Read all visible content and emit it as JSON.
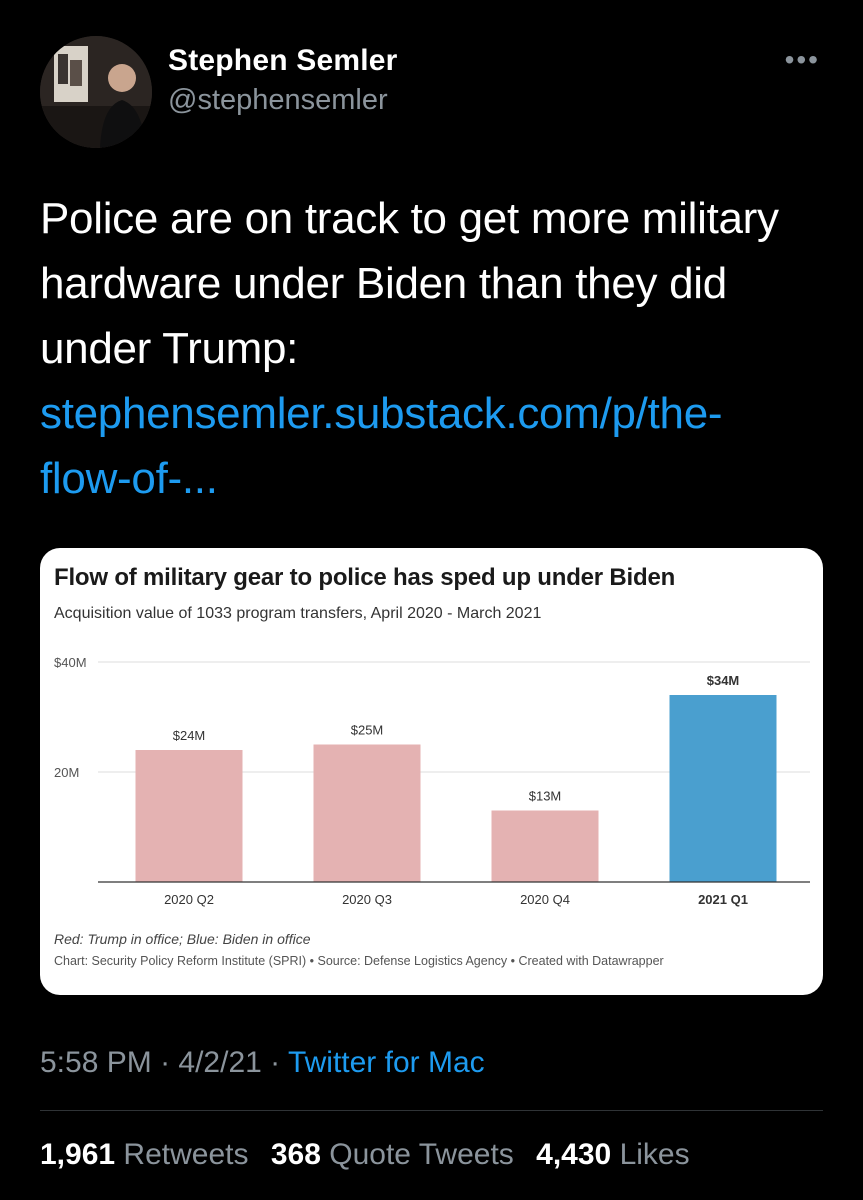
{
  "author": {
    "name": "Stephen Semler",
    "handle": "@stephensemler"
  },
  "tweet": {
    "text_lines": [
      "Police are on track to get more military",
      "hardware under Biden than they did",
      "under Trump:"
    ],
    "link_lines": [
      "stephensemler.substack.com/p/the-",
      "flow-of-..."
    ]
  },
  "chart_data": {
    "type": "bar",
    "title": "Flow of military gear to police has sped up under Biden",
    "subtitle": "Acquisition value of 1033 program transfers, April 2020 - March 2021",
    "categories": [
      "2020 Q2",
      "2020 Q3",
      "2020 Q4",
      "2021 Q1"
    ],
    "values": [
      24,
      25,
      13,
      34
    ],
    "data_labels": [
      "$24M",
      "$25M",
      "$13M",
      "$34M"
    ],
    "bar_colors": [
      "#e4b2b2",
      "#e4b2b2",
      "#e4b2b2",
      "#4a9fcf"
    ],
    "ylim": [
      0,
      40
    ],
    "yticks": [
      {
        "value": 20,
        "label": "20M"
      },
      {
        "value": 40,
        "label": "$40M"
      }
    ],
    "grid": true,
    "note": "Red: Trump in office; Blue: Biden in office",
    "credit": "Chart: Security Policy Reform Institute (SPRI) • Source: Defense Logistics Agency • Created with Datawrapper"
  },
  "meta": {
    "time": "5:58 PM",
    "sep1": " · ",
    "date": "4/2/21",
    "sep2": " · ",
    "source": "Twitter for Mac"
  },
  "stats": {
    "retweets_count": "1,961",
    "retweets_label": "Retweets",
    "quotes_count": "368",
    "quotes_label": "Quote Tweets",
    "likes_count": "4,430",
    "likes_label": "Likes"
  },
  "colors": {
    "background": "#000000",
    "link": "#1d9bf0",
    "muted": "#8b949c",
    "trump_bar": "#e4b2b2",
    "biden_bar": "#4a9fcf"
  }
}
